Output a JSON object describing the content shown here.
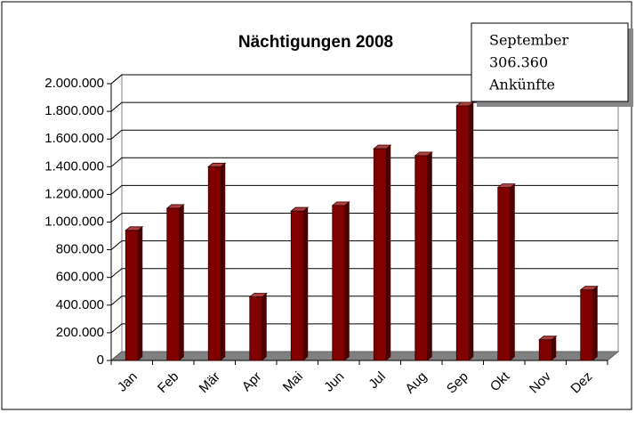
{
  "chart_data": {
    "type": "bar",
    "title": "Nächtigungen 2008",
    "categories": [
      "Jan",
      "Feb",
      "Mär",
      "Apr",
      "Mai",
      "Jun",
      "Jul",
      "Aug",
      "Sep",
      "Okt",
      "Nov",
      "Dez"
    ],
    "values": [
      940000,
      1100000,
      1400000,
      460000,
      1080000,
      1120000,
      1530000,
      1480000,
      1840000,
      1250000,
      150000,
      510000
    ],
    "color": "#800000",
    "ylim": [
      0,
      2000000
    ],
    "yticks": [
      0,
      {
        "value": 200000,
        "label": "200.000"
      },
      {
        "value": 400000,
        "label": "400.000"
      },
      {
        "value": 600000,
        "label": "600.000"
      },
      {
        "value": 800000,
        "label": "800.000"
      },
      {
        "value": 1000000,
        "label": "1.000.000"
      },
      {
        "value": 1200000,
        "label": "1.200.000"
      },
      {
        "value": 1400000,
        "label": "1.400.000"
      },
      {
        "value": 1600000,
        "label": "1.600.000"
      },
      {
        "value": 1800000,
        "label": "1.800.000"
      },
      {
        "value": 2000000,
        "label": "2.000.000"
      }
    ],
    "grid": true,
    "tooltip": {
      "lines": [
        "September",
        "306.360",
        "Ankünfte"
      ]
    }
  }
}
